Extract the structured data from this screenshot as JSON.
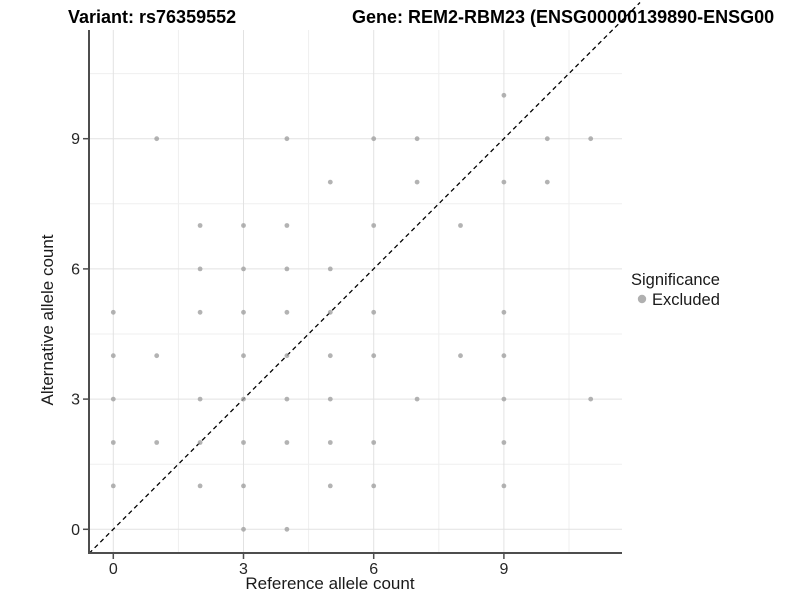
{
  "titles": {
    "variant": "Variant: rs76359552",
    "gene": "Gene: REM2-RBM23 (ENSG00000139890-ENSG00"
  },
  "legend": {
    "title": "Significance",
    "items": [
      {
        "label": "Excluded",
        "color": "#b0b0b0"
      }
    ]
  },
  "colors": {
    "point": "#a0a0a0",
    "axis_line": "#4d4d4d",
    "grid_major": "#e2e2e2",
    "grid_minor": "#efefef",
    "reference_line": "#000000"
  },
  "chart_data": {
    "type": "scatter",
    "xlabel": "Reference allele count",
    "ylabel": "Alternative allele count",
    "x_ticks": [
      0,
      3,
      6,
      9
    ],
    "y_ticks": [
      0,
      3,
      6,
      9
    ],
    "x_minor": [
      1.5,
      4.5,
      7.5,
      10.5
    ],
    "y_minor": [
      1.5,
      4.5,
      7.5,
      10.5
    ],
    "xlim": [
      -0.56,
      11.8
    ],
    "ylim": [
      -0.56,
      12.1
    ],
    "grid": true,
    "legend_position": "right",
    "reference_line": {
      "type": "identity y=x",
      "style": "dashed",
      "color": "#000000"
    },
    "series": [
      {
        "name": "Excluded",
        "color": "#b3b3b3",
        "points": [
          [
            3,
            0
          ],
          [
            4,
            0
          ],
          [
            0,
            1
          ],
          [
            2,
            1
          ],
          [
            3,
            1
          ],
          [
            5,
            1
          ],
          [
            6,
            1
          ],
          [
            9,
            1
          ],
          [
            0,
            2
          ],
          [
            1,
            2
          ],
          [
            2,
            2
          ],
          [
            3,
            2
          ],
          [
            4,
            2
          ],
          [
            5,
            2
          ],
          [
            6,
            2
          ],
          [
            9,
            2
          ],
          [
            0,
            3
          ],
          [
            2,
            3
          ],
          [
            3,
            3
          ],
          [
            4,
            3
          ],
          [
            5,
            3
          ],
          [
            7,
            3
          ],
          [
            9,
            3
          ],
          [
            11,
            3
          ],
          [
            0,
            4
          ],
          [
            1,
            4
          ],
          [
            3,
            4
          ],
          [
            4,
            4
          ],
          [
            5,
            4
          ],
          [
            6,
            4
          ],
          [
            8,
            4
          ],
          [
            9,
            4
          ],
          [
            0,
            5
          ],
          [
            2,
            5
          ],
          [
            3,
            5
          ],
          [
            4,
            5
          ],
          [
            5,
            5
          ],
          [
            6,
            5
          ],
          [
            9,
            5
          ],
          [
            2,
            6
          ],
          [
            3,
            6
          ],
          [
            4,
            6
          ],
          [
            5,
            6
          ],
          [
            2,
            7
          ],
          [
            3,
            7
          ],
          [
            4,
            7
          ],
          [
            6,
            7
          ],
          [
            8,
            7
          ],
          [
            5,
            8
          ],
          [
            7,
            8
          ],
          [
            9,
            8
          ],
          [
            10,
            8
          ],
          [
            1,
            9
          ],
          [
            4,
            9
          ],
          [
            6,
            9
          ],
          [
            7,
            9
          ],
          [
            10,
            9
          ],
          [
            11,
            9
          ],
          [
            9,
            10
          ]
        ]
      }
    ]
  }
}
